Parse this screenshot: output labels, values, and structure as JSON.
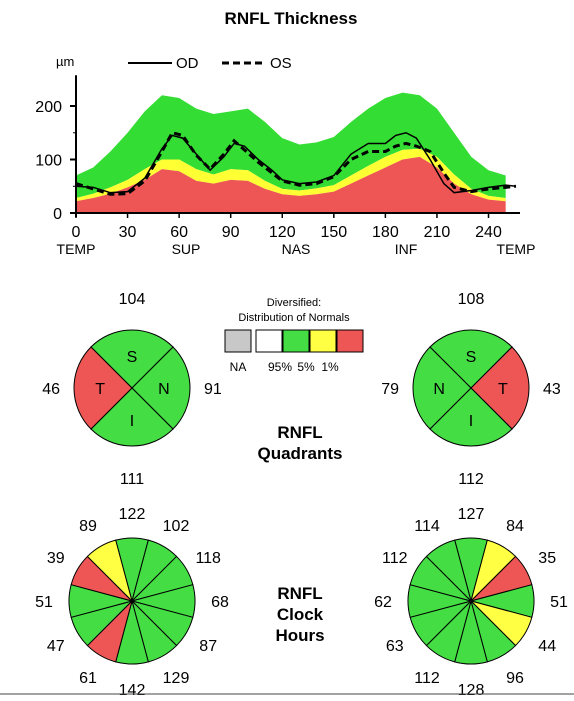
{
  "title": "RNFL Thickness",
  "chart_data": [
    {
      "type": "line",
      "title": "RNFL Thickness",
      "ylabel": "µm",
      "xlim": [
        0,
        256
      ],
      "ylim": [
        0,
        250
      ],
      "x_ticks": [
        0,
        30,
        60,
        90,
        120,
        150,
        180,
        210,
        240
      ],
      "y_ticks": [
        0,
        100,
        200
      ],
      "x_region_labels": [
        {
          "label": "TEMP",
          "x": 0
        },
        {
          "label": "SUP",
          "x": 64
        },
        {
          "label": "NAS",
          "x": 128
        },
        {
          "label": "INF",
          "x": 192
        },
        {
          "label": "TEMP",
          "x": 256
        }
      ],
      "legend": [
        {
          "name": "OD",
          "style": "solid"
        },
        {
          "name": "OS",
          "style": "dashed"
        }
      ],
      "bands": {
        "x": [
          0,
          10,
          20,
          30,
          40,
          50,
          60,
          70,
          80,
          90,
          100,
          110,
          120,
          130,
          140,
          150,
          160,
          170,
          180,
          190,
          200,
          210,
          220,
          230,
          240,
          250
        ],
        "p1": [
          22,
          28,
          36,
          48,
          62,
          82,
          78,
          60,
          55,
          62,
          60,
          45,
          35,
          32,
          35,
          40,
          55,
          70,
          85,
          100,
          105,
          85,
          55,
          35,
          25,
          22
        ],
        "p5": [
          28,
          36,
          48,
          62,
          82,
          100,
          100,
          82,
          72,
          82,
          80,
          60,
          45,
          42,
          46,
          52,
          70,
          88,
          105,
          118,
          120,
          105,
          72,
          45,
          32,
          28
        ],
        "p95": [
          70,
          85,
          115,
          150,
          190,
          220,
          215,
          195,
          185,
          190,
          195,
          170,
          140,
          128,
          132,
          142,
          170,
          195,
          215,
          225,
          220,
          195,
          150,
          105,
          80,
          70
        ],
        "colors": {
          "below_1": "#ee5555",
          "between_1_5": "#ffff33",
          "between_5_95": "#33dd33"
        }
      },
      "series": [
        {
          "name": "OD",
          "style": "solid",
          "x": [
            0,
            10,
            20,
            30,
            40,
            50,
            56,
            62,
            70,
            78,
            86,
            92,
            98,
            106,
            114,
            120,
            130,
            140,
            150,
            160,
            170,
            180,
            186,
            192,
            198,
            206,
            214,
            220,
            230,
            240,
            250,
            256
          ],
          "y": [
            50,
            48,
            38,
            40,
            65,
            120,
            145,
            140,
            110,
            80,
            105,
            130,
            125,
            100,
            80,
            62,
            55,
            58,
            70,
            110,
            130,
            130,
            145,
            150,
            140,
            100,
            55,
            38,
            42,
            48,
            52,
            50
          ]
        },
        {
          "name": "OS",
          "style": "dashed",
          "x": [
            0,
            10,
            20,
            30,
            40,
            50,
            56,
            62,
            70,
            78,
            86,
            92,
            98,
            106,
            114,
            120,
            130,
            140,
            150,
            160,
            170,
            180,
            186,
            192,
            198,
            206,
            214,
            220,
            230,
            240,
            250,
            256
          ],
          "y": [
            55,
            45,
            35,
            36,
            60,
            115,
            150,
            145,
            108,
            82,
            110,
            135,
            118,
            95,
            75,
            60,
            52,
            55,
            68,
            100,
            115,
            115,
            125,
            130,
            125,
            115,
            75,
            48,
            40,
            45,
            48,
            50
          ]
        }
      ]
    },
    {
      "type": "pie",
      "title": "RNFL Quadrants",
      "eye": "OD",
      "slices": [
        {
          "label": "S",
          "value": 104,
          "color": "#44dd44"
        },
        {
          "label": "N",
          "value": 91,
          "color": "#44dd44"
        },
        {
          "label": "I",
          "value": 111,
          "color": "#44dd44"
        },
        {
          "label": "T",
          "value": 46,
          "color": "#ee5555"
        }
      ]
    },
    {
      "type": "pie",
      "title": "RNFL Quadrants",
      "eye": "OS",
      "slices": [
        {
          "label": "S",
          "value": 108,
          "color": "#44dd44"
        },
        {
          "label": "T",
          "value": 43,
          "color": "#ee5555"
        },
        {
          "label": "I",
          "value": 112,
          "color": "#44dd44"
        },
        {
          "label": "N",
          "value": 79,
          "color": "#44dd44"
        }
      ]
    },
    {
      "type": "pie",
      "title": "RNFL Clock Hours",
      "eye": "OD",
      "clock_hours": [
        122,
        102,
        118,
        68,
        87,
        129,
        142,
        61,
        47,
        51,
        39,
        89
      ],
      "colors": [
        "#44dd44",
        "#44dd44",
        "#44dd44",
        "#44dd44",
        "#44dd44",
        "#44dd44",
        "#44dd44",
        "#ee5555",
        "#44dd44",
        "#44dd44",
        "#ee5555",
        "#ffff44"
      ]
    },
    {
      "type": "pie",
      "title": "RNFL Clock Hours",
      "eye": "OS",
      "clock_hours": [
        127,
        84,
        35,
        51,
        44,
        96,
        128,
        112,
        63,
        62,
        112,
        114
      ],
      "colors": [
        "#44dd44",
        "#ffff44",
        "#ee5555",
        "#44dd44",
        "#ffff44",
        "#44dd44",
        "#44dd44",
        "#44dd44",
        "#44dd44",
        "#44dd44",
        "#44dd44",
        "#44dd44"
      ]
    }
  ],
  "legend_box": {
    "title_line1": "Diversified:",
    "title_line2": "Distribution of Normals",
    "items": [
      {
        "label": "NA",
        "color": "#c8c8c8"
      },
      {
        "label": "95%",
        "color": "#ffffff"
      },
      {
        "label": "5%",
        "color": "#44dd44"
      },
      {
        "label": "1%",
        "color": "#ffff44"
      },
      {
        "label": "",
        "color": "#ee5555"
      }
    ]
  },
  "section_labels": {
    "quadrants_line1": "RNFL",
    "quadrants_line2": "Quadrants",
    "clock_line1": "RNFL",
    "clock_line2": "Clock",
    "clock_line3": "Hours"
  }
}
